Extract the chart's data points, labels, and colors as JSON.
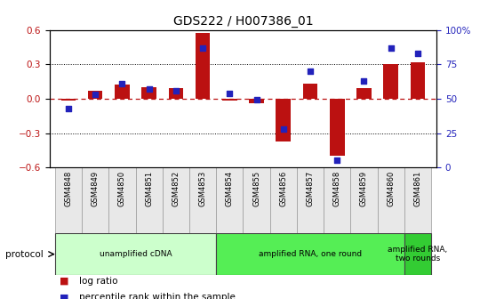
{
  "title": "GDS222 / H007386_01",
  "samples": [
    "GSM4848",
    "GSM4849",
    "GSM4850",
    "GSM4851",
    "GSM4852",
    "GSM4853",
    "GSM4854",
    "GSM4855",
    "GSM4856",
    "GSM4857",
    "GSM4858",
    "GSM4859",
    "GSM4860",
    "GSM4861"
  ],
  "log_ratio": [
    -0.02,
    0.07,
    0.12,
    0.1,
    0.09,
    0.57,
    -0.02,
    -0.04,
    -0.37,
    0.13,
    -0.5,
    0.09,
    0.3,
    0.32
  ],
  "percentile": [
    43,
    53,
    61,
    57,
    56,
    87,
    54,
    49,
    28,
    70,
    5,
    63,
    87,
    83
  ],
  "ylim": [
    -0.6,
    0.6
  ],
  "y2lim": [
    0,
    100
  ],
  "yticks": [
    -0.6,
    -0.3,
    0.0,
    0.3,
    0.6
  ],
  "y2ticks": [
    0,
    25,
    50,
    75,
    100
  ],
  "y2ticklabels": [
    "0",
    "25",
    "50",
    "75",
    "100%"
  ],
  "hlines_dotted": [
    0.3,
    -0.3
  ],
  "bar_color": "#BB1111",
  "dot_color": "#2222BB",
  "zero_line_color": "#BB1111",
  "protocol_groups": [
    {
      "label": "unamplified cDNA",
      "start": 0,
      "end": 5,
      "color": "#ccffcc"
    },
    {
      "label": "amplified RNA, one round",
      "start": 6,
      "end": 12,
      "color": "#55ee55"
    },
    {
      "label": "amplified RNA,\ntwo rounds",
      "start": 13,
      "end": 13,
      "color": "#33cc33"
    }
  ],
  "protocol_label": "protocol",
  "legend_items": [
    {
      "label": "log ratio",
      "color": "#BB1111"
    },
    {
      "label": "percentile rank within the sample",
      "color": "#2222BB"
    }
  ],
  "background_color": "#ffffff",
  "tick_label_color_left": "#BB1111",
  "tick_label_color_right": "#2222BB",
  "bar_width": 0.55,
  "title_fontsize": 10,
  "axis_fontsize": 7.5,
  "label_fontsize": 6.0,
  "legend_fontsize": 7.5
}
